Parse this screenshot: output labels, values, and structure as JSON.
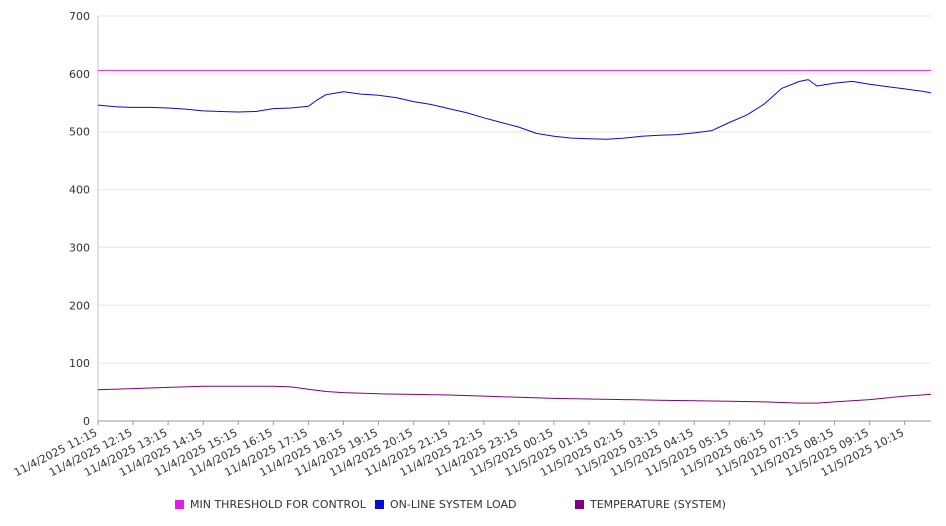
{
  "chart_data": {
    "type": "line",
    "title": "",
    "xlabel": "",
    "ylabel": "",
    "ylim": [
      0,
      700
    ],
    "y_ticks": [
      0,
      100,
      200,
      300,
      400,
      500,
      600,
      700
    ],
    "x_range": [
      "11/4/2025 11:15",
      "11/5/2025 11:00"
    ],
    "x_tick_labels": [
      "11/4/2025 11:15",
      "11/4/2025 12:15",
      "11/4/2025 13:15",
      "11/4/2025 14:15",
      "11/4/2025 15:15",
      "11/4/2025 16:15",
      "11/4/2025 17:15",
      "11/4/2025 18:15",
      "11/4/2025 19:15",
      "11/4/2025 20:15",
      "11/4/2025 21:15",
      "11/4/2025 22:15",
      "11/4/2025 23:15",
      "11/5/2025 00:15",
      "11/5/2025 01:15",
      "11/5/2025 02:15",
      "11/5/2025 03:15",
      "11/5/2025 04:15",
      "11/5/2025 05:15",
      "11/5/2025 06:15",
      "11/5/2025 07:15",
      "11/5/2025 08:15",
      "11/5/2025 09:15",
      "11/5/2025 10:15"
    ],
    "grid": true,
    "legend_position": "bottom",
    "series": [
      {
        "name": "MIN THRESHOLD FOR CONTROL",
        "color": "#e31ce3",
        "points": [
          [
            "11/4/2025 11:15",
            606
          ],
          [
            "11/5/2025 11:00",
            606
          ]
        ]
      },
      {
        "name": "ON-LINE SYSTEM LOAD",
        "color": "#0a0ad6",
        "points": [
          [
            "11/4/2025 11:15",
            546
          ],
          [
            "11/4/2025 11:45",
            543
          ],
          [
            "11/4/2025 12:15",
            542
          ],
          [
            "11/4/2025 12:45",
            542
          ],
          [
            "11/4/2025 13:15",
            541
          ],
          [
            "11/4/2025 13:45",
            539
          ],
          [
            "11/4/2025 14:15",
            536
          ],
          [
            "11/4/2025 14:45",
            535
          ],
          [
            "11/4/2025 15:15",
            534
          ],
          [
            "11/4/2025 15:45",
            535
          ],
          [
            "11/4/2025 16:15",
            540
          ],
          [
            "11/4/2025 16:45",
            541
          ],
          [
            "11/4/2025 17:15",
            544
          ],
          [
            "11/4/2025 17:30",
            555
          ],
          [
            "11/4/2025 17:45",
            564
          ],
          [
            "11/4/2025 18:15",
            569
          ],
          [
            "11/4/2025 18:45",
            565
          ],
          [
            "11/4/2025 19:15",
            563
          ],
          [
            "11/4/2025 19:45",
            559
          ],
          [
            "11/4/2025 20:15",
            552
          ],
          [
            "11/4/2025 20:45",
            547
          ],
          [
            "11/4/2025 21:15",
            540
          ],
          [
            "11/4/2025 21:45",
            533
          ],
          [
            "11/4/2025 22:15",
            524
          ],
          [
            "11/4/2025 22:45",
            516
          ],
          [
            "11/4/2025 23:15",
            508
          ],
          [
            "11/4/2025 23:45",
            497
          ],
          [
            "11/5/2025 00:15",
            492
          ],
          [
            "11/5/2025 00:45",
            489
          ],
          [
            "11/5/2025 01:15",
            488
          ],
          [
            "11/5/2025 01:45",
            487
          ],
          [
            "11/5/2025 02:15",
            489
          ],
          [
            "11/5/2025 02:45",
            492
          ],
          [
            "11/5/2025 03:15",
            494
          ],
          [
            "11/5/2025 03:45",
            495
          ],
          [
            "11/5/2025 04:15",
            498
          ],
          [
            "11/5/2025 04:45",
            502
          ],
          [
            "11/5/2025 05:15",
            516
          ],
          [
            "11/5/2025 05:45",
            529
          ],
          [
            "11/5/2025 06:15",
            548
          ],
          [
            "11/5/2025 06:45",
            575
          ],
          [
            "11/5/2025 07:15",
            587
          ],
          [
            "11/5/2025 07:30",
            590
          ],
          [
            "11/5/2025 07:45",
            579
          ],
          [
            "11/5/2025 08:15",
            584
          ],
          [
            "11/5/2025 08:45",
            587
          ],
          [
            "11/5/2025 09:15",
            582
          ],
          [
            "11/5/2025 09:45",
            578
          ],
          [
            "11/5/2025 10:15",
            574
          ],
          [
            "11/5/2025 10:45",
            570
          ],
          [
            "11/5/2025 11:00",
            567
          ]
        ]
      },
      {
        "name": "TEMPERATURE (SYSTEM)",
        "color": "#800080",
        "points": [
          [
            "11/4/2025 11:15",
            54
          ],
          [
            "11/4/2025 12:15",
            56
          ],
          [
            "11/4/2025 13:15",
            58
          ],
          [
            "11/4/2025 14:15",
            60
          ],
          [
            "11/4/2025 15:15",
            60
          ],
          [
            "11/4/2025 16:15",
            60
          ],
          [
            "11/4/2025 16:45",
            59
          ],
          [
            "11/4/2025 17:15",
            55
          ],
          [
            "11/4/2025 17:45",
            51
          ],
          [
            "11/4/2025 18:15",
            49
          ],
          [
            "11/4/2025 19:15",
            47
          ],
          [
            "11/4/2025 20:15",
            46
          ],
          [
            "11/4/2025 21:15",
            45
          ],
          [
            "11/4/2025 22:15",
            43
          ],
          [
            "11/4/2025 23:15",
            41
          ],
          [
            "11/5/2025 00:15",
            39
          ],
          [
            "11/5/2025 01:15",
            38
          ],
          [
            "11/5/2025 02:15",
            37
          ],
          [
            "11/5/2025 03:15",
            36
          ],
          [
            "11/5/2025 04:15",
            35
          ],
          [
            "11/5/2025 05:15",
            34
          ],
          [
            "11/5/2025 06:15",
            33
          ],
          [
            "11/5/2025 07:15",
            31
          ],
          [
            "11/5/2025 07:45",
            31
          ],
          [
            "11/5/2025 08:15",
            33
          ],
          [
            "11/5/2025 09:15",
            37
          ],
          [
            "11/5/2025 10:15",
            43
          ],
          [
            "11/5/2025 11:00",
            46
          ]
        ]
      }
    ]
  }
}
